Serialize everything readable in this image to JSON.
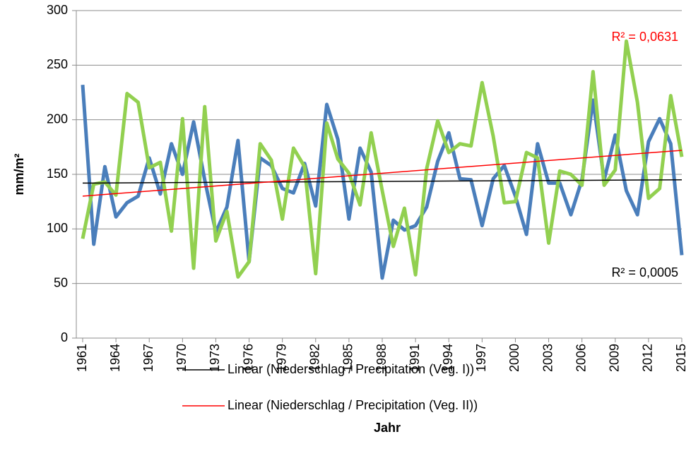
{
  "chart_data": {
    "type": "line",
    "x_label": "Jahr",
    "y_label": "mm/m²",
    "x": [
      1961,
      1962,
      1963,
      1964,
      1965,
      1966,
      1967,
      1968,
      1969,
      1970,
      1971,
      1972,
      1973,
      1974,
      1975,
      1976,
      1977,
      1978,
      1979,
      1980,
      1981,
      1982,
      1983,
      1984,
      1985,
      1986,
      1987,
      1988,
      1989,
      1990,
      1991,
      1992,
      1993,
      1994,
      1995,
      1996,
      1997,
      1998,
      1999,
      2000,
      2001,
      2002,
      2003,
      2004,
      2005,
      2006,
      2007,
      2008,
      2009,
      2010,
      2011,
      2012,
      2013,
      2014,
      2015
    ],
    "series": [
      {
        "color": "#4a7ebb",
        "values": [
          232,
          86,
          157,
          111,
          124,
          130,
          165,
          132,
          178,
          150,
          198,
          145,
          97,
          120,
          181,
          70,
          165,
          158,
          137,
          133,
          160,
          121,
          214,
          182,
          109,
          174,
          152,
          55,
          108,
          99,
          103,
          120,
          162,
          188,
          146,
          145,
          103,
          146,
          158,
          130,
          95,
          178,
          142,
          142,
          113,
          145,
          218,
          145,
          186,
          135,
          113,
          180,
          201,
          178,
          76
        ]
      },
      {
        "color": "#92d050",
        "values": [
          91,
          141,
          143,
          131,
          224,
          216,
          156,
          161,
          98,
          201,
          64,
          212,
          89,
          116,
          56,
          70,
          178,
          163,
          109,
          174,
          157,
          59,
          197,
          164,
          151,
          122,
          188,
          135,
          84,
          119,
          58,
          155,
          199,
          170,
          178,
          176,
          234,
          185,
          124,
          125,
          170,
          165,
          87,
          153,
          150,
          140,
          244,
          140,
          154,
          272,
          216,
          128,
          137,
          222,
          166
        ]
      }
    ],
    "trendlines": [
      {
        "name": "Linear (Niederschlag / Precipitation (Veg. I))",
        "color": "#000000",
        "x": [
          1961,
          2015
        ],
        "values": [
          142,
          145
        ]
      },
      {
        "name": "Linear (Niederschlag / Precipitation (Veg. II))",
        "color": "#ff0000",
        "x": [
          1961,
          2015
        ],
        "values": [
          130,
          172
        ]
      }
    ],
    "annotations": [
      {
        "text": "R² = 0,0631",
        "color": "#ff0000"
      },
      {
        "text": "R² = 0,0005",
        "color": "#000000"
      }
    ],
    "xlim": [
      1961,
      2015
    ],
    "xticks": [
      1961,
      1964,
      1967,
      1970,
      1973,
      1976,
      1979,
      1982,
      1985,
      1988,
      1991,
      1994,
      1997,
      2000,
      2003,
      2006,
      2009,
      2012,
      2015
    ],
    "ylim": [
      0,
      300
    ],
    "yticks": [
      0,
      50,
      100,
      150,
      200,
      250,
      300
    ],
    "grid": true
  }
}
